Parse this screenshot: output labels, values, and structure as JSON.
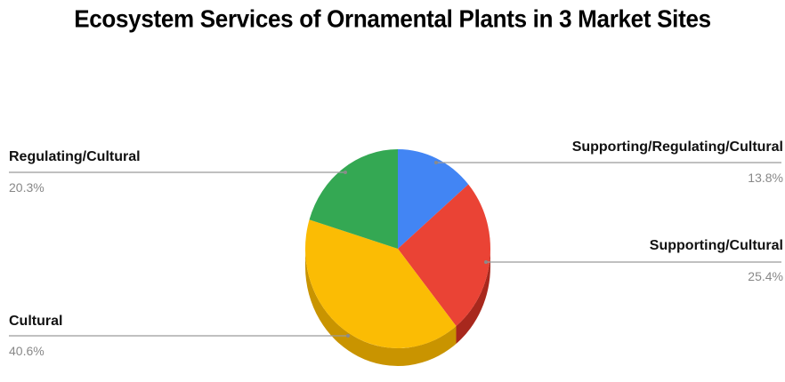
{
  "chart_data": {
    "type": "pie",
    "title": "Ecosystem Services of Ornamental Plants in 3 Market Sites",
    "three_d": true,
    "slices": [
      {
        "label": "Supporting/Regulating/Cultural",
        "value": 13.8,
        "value_label": "13.8%",
        "color": "#4285F4",
        "side_color": "#2c5fb8"
      },
      {
        "label": "Supporting/Cultural",
        "value": 25.4,
        "value_label": "25.4%",
        "color": "#EA4335",
        "side_color": "#a8281d"
      },
      {
        "label": "Cultural",
        "value": 40.6,
        "value_label": "40.6%",
        "color": "#FBBC04",
        "side_color": "#c99400"
      },
      {
        "label": "Regulating/Cultural",
        "value": 20.3,
        "value_label": "20.3%",
        "color": "#34A853",
        "side_color": "#22753a"
      }
    ],
    "legend": "leader-line labels around pie"
  }
}
